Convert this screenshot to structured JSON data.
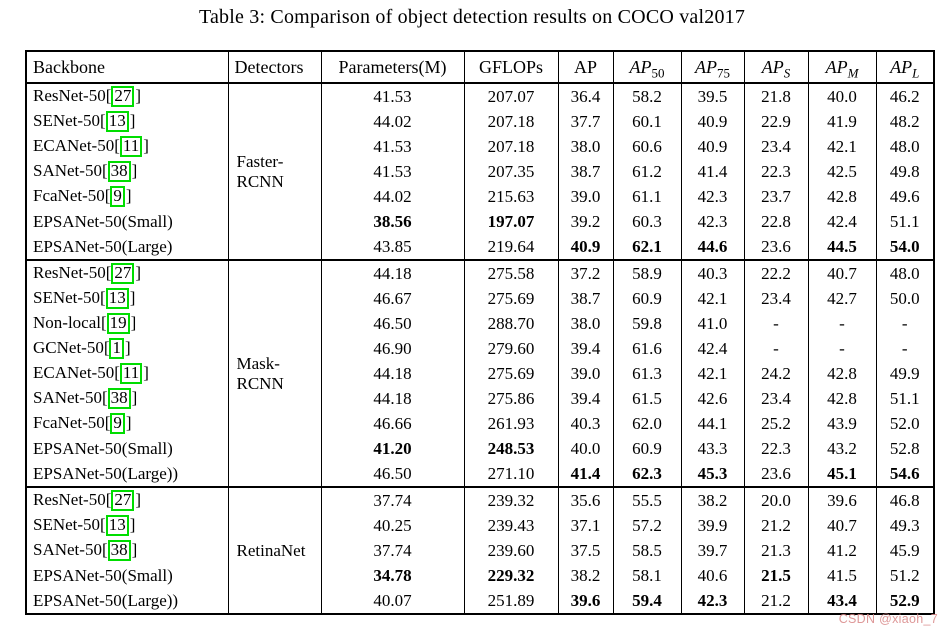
{
  "title": "Table 3: Comparison of object detection results on COCO val2017",
  "watermark": "CSDN @xiaoh_7",
  "colors": {
    "citation_green": "#00dd00",
    "watermark_pink": "rgba(216,134,134,0.85)",
    "border": "#000000",
    "background": "#ffffff"
  },
  "table": {
    "headers": [
      {
        "text": "Backbone",
        "align": "left"
      },
      {
        "text": "Detectors",
        "align": "left"
      },
      {
        "text": "Parameters(M)",
        "align": "center"
      },
      {
        "text": "GFLOPs",
        "align": "center"
      },
      {
        "base": "AP",
        "sub": "",
        "italic": false,
        "sub_italic": false
      },
      {
        "base": "AP",
        "sub": "50",
        "italic": true,
        "sub_italic": false
      },
      {
        "base": "AP",
        "sub": "75",
        "italic": true,
        "sub_italic": false
      },
      {
        "base": "AP",
        "sub": "S",
        "italic": true,
        "sub_italic": true
      },
      {
        "base": "AP",
        "sub": "M",
        "italic": true,
        "sub_italic": true
      },
      {
        "base": "AP",
        "sub": "L",
        "italic": true,
        "sub_italic": true
      }
    ],
    "value_columns": [
      "Parameters(M)",
      "GFLOPs",
      "AP",
      "AP50",
      "AP75",
      "APS",
      "APM",
      "APL"
    ],
    "groups": [
      {
        "detector_lines": [
          "Faster-",
          "RCNN"
        ],
        "rows": [
          {
            "backbone": "ResNet-50",
            "cite": "27",
            "values": [
              "41.53",
              "207.07",
              "36.4",
              "58.2",
              "39.5",
              "21.8",
              "40.0",
              "46.2"
            ],
            "bold": []
          },
          {
            "backbone": "SENet-50",
            "cite": "13",
            "values": [
              "44.02",
              "207.18",
              "37.7",
              "60.1",
              "40.9",
              "22.9",
              "41.9",
              "48.2"
            ],
            "bold": []
          },
          {
            "backbone": "ECANet-50",
            "cite": "11",
            "values": [
              "41.53",
              "207.18",
              "38.0",
              "60.6",
              "40.9",
              "23.4",
              "42.1",
              "48.0"
            ],
            "bold": []
          },
          {
            "backbone": "SANet-50",
            "cite": "38",
            "values": [
              "41.53",
              "207.35",
              "38.7",
              "61.2",
              "41.4",
              "22.3",
              "42.5",
              "49.8"
            ],
            "bold": []
          },
          {
            "backbone": "FcaNet-50",
            "cite": "9",
            "values": [
              "44.02",
              "215.63",
              "39.0",
              "61.1",
              "42.3",
              "23.7",
              "42.8",
              "49.6"
            ],
            "bold": []
          },
          {
            "backbone": "EPSANet-50(Small)",
            "cite": null,
            "values": [
              "38.56",
              "197.07",
              "39.2",
              "60.3",
              "42.3",
              "22.8",
              "42.4",
              "51.1"
            ],
            "bold": [
              0,
              1
            ]
          },
          {
            "backbone": "EPSANet-50(Large)",
            "cite": null,
            "values": [
              "43.85",
              "219.64",
              "40.9",
              "62.1",
              "44.6",
              "23.6",
              "44.5",
              "54.0"
            ],
            "bold": [
              2,
              3,
              4,
              6,
              7
            ]
          }
        ]
      },
      {
        "detector_lines": [
          "Mask-",
          "RCNN"
        ],
        "rows": [
          {
            "backbone": "ResNet-50",
            "cite": "27",
            "values": [
              "44.18",
              "275.58",
              "37.2",
              "58.9",
              "40.3",
              "22.2",
              "40.7",
              "48.0"
            ],
            "bold": []
          },
          {
            "backbone": "SENet-50",
            "cite": "13",
            "values": [
              "46.67",
              "275.69",
              "38.7",
              "60.9",
              "42.1",
              "23.4",
              "42.7",
              "50.0"
            ],
            "bold": []
          },
          {
            "backbone": "Non-local",
            "cite": "19",
            "values": [
              "46.50",
              "288.70",
              "38.0",
              "59.8",
              "41.0",
              "-",
              "-",
              "-"
            ],
            "bold": []
          },
          {
            "backbone": "GCNet-50",
            "cite": "1",
            "values": [
              "46.90",
              "279.60",
              "39.4",
              "61.6",
              "42.4",
              "-",
              "-",
              "-"
            ],
            "bold": []
          },
          {
            "backbone": "ECANet-50",
            "cite": "11",
            "values": [
              "44.18",
              "275.69",
              "39.0",
              "61.3",
              "42.1",
              "24.2",
              "42.8",
              "49.9"
            ],
            "bold": []
          },
          {
            "backbone": "SANet-50",
            "cite": "38",
            "values": [
              "44.18",
              "275.86",
              "39.4",
              "61.5",
              "42.6",
              "23.4",
              "42.8",
              "51.1"
            ],
            "bold": []
          },
          {
            "backbone": "FcaNet-50",
            "cite": "9",
            "values": [
              "46.66",
              "261.93",
              "40.3",
              "62.0",
              "44.1",
              "25.2",
              "43.9",
              "52.0"
            ],
            "bold": []
          },
          {
            "backbone": "EPSANet-50(Small)",
            "cite": null,
            "values": [
              "41.20",
              "248.53",
              "40.0",
              "60.9",
              "43.3",
              "22.3",
              "43.2",
              "52.8"
            ],
            "bold": [
              0,
              1
            ]
          },
          {
            "backbone": "EPSANet-50(Large))",
            "cite": null,
            "values": [
              "46.50",
              "271.10",
              "41.4",
              "62.3",
              "45.3",
              "23.6",
              "45.1",
              "54.6"
            ],
            "bold": [
              2,
              3,
              4,
              6,
              7
            ]
          }
        ]
      },
      {
        "detector_lines": [
          "RetinaNet"
        ],
        "rows": [
          {
            "backbone": "ResNet-50",
            "cite": "27",
            "values": [
              "37.74",
              "239.32",
              "35.6",
              "55.5",
              "38.2",
              "20.0",
              "39.6",
              "46.8"
            ],
            "bold": []
          },
          {
            "backbone": "SENet-50",
            "cite": "13",
            "values": [
              "40.25",
              "239.43",
              "37.1",
              "57.2",
              "39.9",
              "21.2",
              "40.7",
              "49.3"
            ],
            "bold": []
          },
          {
            "backbone": "SANet-50",
            "cite": "38",
            "values": [
              "37.74",
              "239.60",
              "37.5",
              "58.5",
              "39.7",
              "21.3",
              "41.2",
              "45.9"
            ],
            "bold": []
          },
          {
            "backbone": "EPSANet-50(Small)",
            "cite": null,
            "values": [
              "34.78",
              "229.32",
              "38.2",
              "58.1",
              "40.6",
              "21.5",
              "41.5",
              "51.2"
            ],
            "bold": [
              0,
              1,
              5
            ]
          },
          {
            "backbone": "EPSANet-50(Large))",
            "cite": null,
            "values": [
              "40.07",
              "251.89",
              "39.6",
              "59.4",
              "42.3",
              "21.2",
              "43.4",
              "52.9"
            ],
            "bold": [
              2,
              3,
              4,
              6,
              7
            ]
          }
        ]
      }
    ]
  }
}
